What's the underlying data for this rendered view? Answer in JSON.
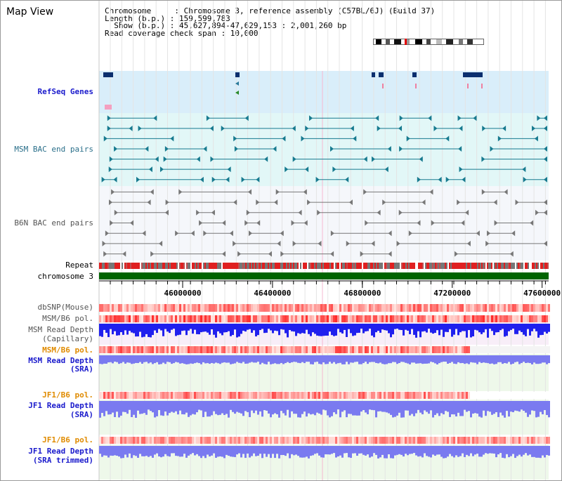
{
  "header": {
    "title": "Map View",
    "chromosome_line": "Chromosome     : Chromosome 3, reference assembly (C57BL/6J) (Build 37)",
    "length_line": "Length (b.p.) : 159,599,783",
    "show_line": "  Show (b.p.) : 45,627,894-47,629,153 : 2,001,260 bp",
    "span_line": "Read coverage check span : 10,000"
  },
  "tracks": {
    "refseq": "RefSeq Genes",
    "msm_bac": "MSM BAC end pairs",
    "b6n_bac": "B6N BAC end pairs",
    "repeat": "Repeat",
    "chromosome": "chromosome 3",
    "dbsnp": "dbSNP(Mouse)",
    "msm_b6_pol_1": "MSM/B6 pol.",
    "msm_read_depth_cap_1": "MSM Read Depth",
    "msm_read_depth_cap_2": "(Capillary)",
    "msm_b6_pol_2": "MSM/B6 pol.",
    "msm_read_depth_sra_1": "MSM Read Depth",
    "msm_read_depth_sra_2": "(SRA)",
    "jf1_b6_pol_1": "JF1/B6 pol.",
    "jf1_read_depth_sra_1": "JF1 Read Depth",
    "jf1_read_depth_sra_2": "(SRA)",
    "jf1_b6_pol_2": "JF1/B6 pol.",
    "jf1_read_depth_trim_1": "JF1 Read Depth",
    "jf1_read_depth_trim_2": "(SRA trimmed)"
  },
  "axis": {
    "ticks": [
      "46000000",
      "46400000",
      "46800000",
      "47200000",
      "47600000"
    ],
    "tick_values": [
      46000000,
      46400000,
      46800000,
      47200000,
      47600000
    ],
    "range_start": 45627894,
    "range_end": 47629153
  },
  "colors": {
    "refseq_bg": "#d9eefa",
    "bac_bg": "#e2f7f7",
    "gene_dark": "#0b2f6e",
    "msm_feature": "#177a8f",
    "b6n_feature": "#777777",
    "chromosome_bar": "#006400",
    "read_depth_dark": "#2020ee",
    "read_depth_light": "#7a7af0",
    "pol_red": "#f04040",
    "green_bg": "#eef8ea",
    "pink_bg": "#f8eef8"
  }
}
